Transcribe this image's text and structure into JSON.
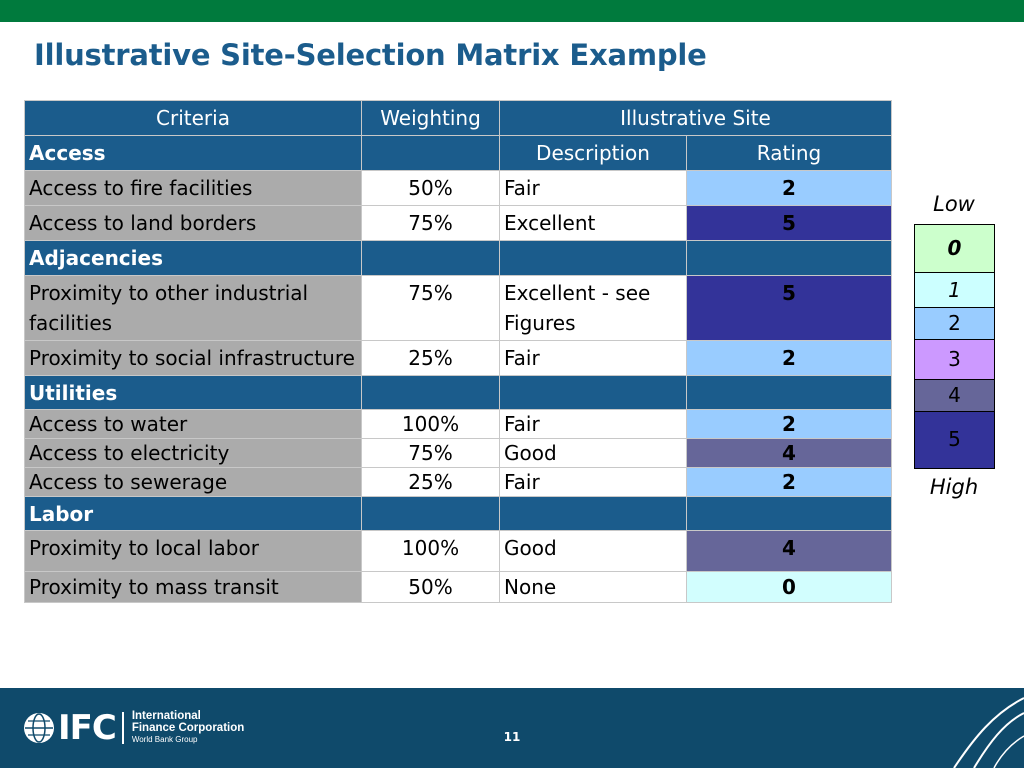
{
  "slide": {
    "title": "Illustrative Site-Selection Matrix Example",
    "page_number": "11"
  },
  "table": {
    "header": {
      "criteria": "Criteria",
      "weighting": "Weighting",
      "site": "Illustrative Site"
    },
    "groups": {
      "access": {
        "label": "Access",
        "description": "Description",
        "rating": "Rating",
        "rows": [
          {
            "criterion": "Access to fire facilities",
            "weighting": "50%",
            "description": "Fair",
            "rating": "2"
          },
          {
            "criterion": "Access to land borders",
            "weighting": "75%",
            "description": "Excellent",
            "rating": "5"
          }
        ]
      },
      "adjacencies": {
        "label": "Adjacencies",
        "rows": [
          {
            "criterion": "Proximity to other industrial facilities",
            "weighting": "75%",
            "description": "Excellent - see Figures",
            "rating": "5"
          },
          {
            "criterion": "Proximity to social infrastructure",
            "weighting": "25%",
            "description": "Fair",
            "rating": "2"
          }
        ]
      },
      "utilities": {
        "label": "Utilities",
        "rows": [
          {
            "criterion": "Access to water",
            "weighting": "100%",
            "description": "Fair",
            "rating": "2"
          },
          {
            "criterion": "Access to electricity",
            "weighting": "75%",
            "description": "Good",
            "rating": "4"
          },
          {
            "criterion": "Access to sewerage",
            "weighting": "25%",
            "description": "Fair",
            "rating": "2"
          }
        ]
      },
      "labor": {
        "label": "Labor",
        "rows": [
          {
            "criterion": "Proximity to local labor",
            "weighting": "100%",
            "description": "Good",
            "rating": "4"
          },
          {
            "criterion": "Proximity to mass transit",
            "weighting": "50%",
            "description": "None",
            "rating": "0"
          }
        ]
      }
    }
  },
  "legend": {
    "low_label": "Low",
    "high_label": "High",
    "levels": [
      "0",
      "1",
      "2",
      "3",
      "4",
      "5"
    ],
    "colors": {
      "0": "#ccffcc",
      "1": "#ccffff",
      "2": "#99ccff",
      "3": "#cc99ff",
      "4": "#666699",
      "5": "#333399"
    }
  },
  "footer": {
    "logo_mark": "IFC",
    "org_line1": "International",
    "org_line2": "Finance Corporation",
    "org_line3": "World Bank Group"
  },
  "colors": {
    "accent_green": "#007a3d",
    "header_blue": "#1b5c8c",
    "footer_blue": "#0f4a6b",
    "criteria_gray": "#ababab"
  }
}
